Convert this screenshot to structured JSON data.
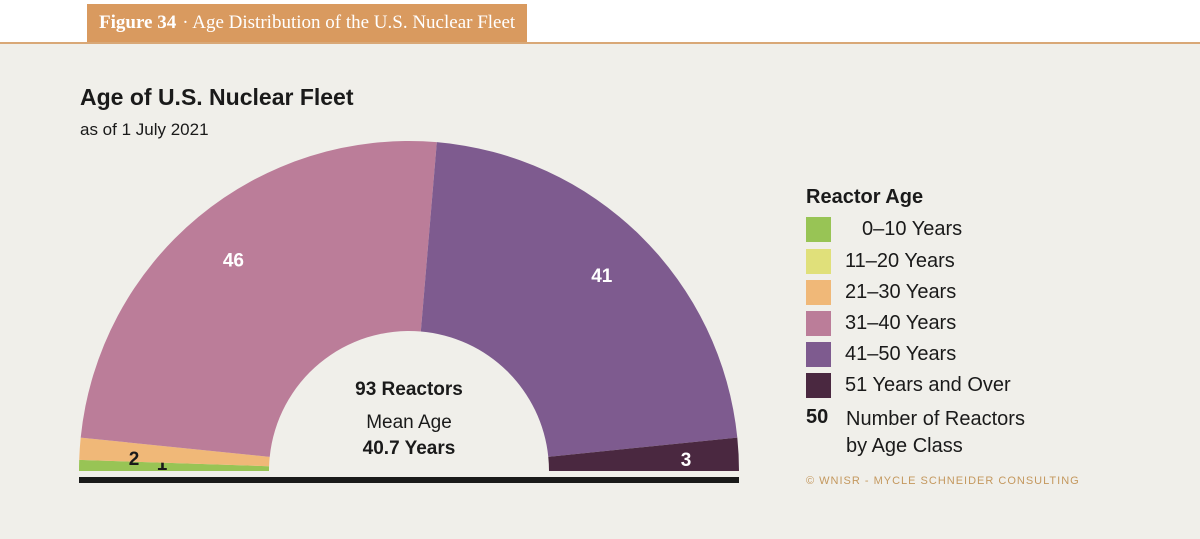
{
  "figure": {
    "number": "Figure 34",
    "title": "· Age Distribution of the U.S. Nuclear Fleet"
  },
  "chart_data": {
    "type": "pie",
    "style": "half-donut",
    "title": "Age of U.S. Nuclear Fleet",
    "subtitle": "as of 1 July 2021",
    "categories": [
      "0–10 Years",
      "11–20 Years",
      "21–30 Years",
      "31–40 Years",
      "41–50 Years",
      "51 Years and Over"
    ],
    "values": [
      1,
      0,
      2,
      46,
      41,
      3
    ],
    "colors": [
      "#98c455",
      "#e0e07a",
      "#f0b878",
      "#bb7d99",
      "#7e5b8f",
      "#4a2840"
    ],
    "center": {
      "line1": "93 Reactors",
      "line2": "Mean Age",
      "line3": "40.7 Years"
    },
    "legend": {
      "title": "Reactor Age",
      "number_example": "50",
      "number_label_line1": "Number of Reactors",
      "number_label_line2": "by Age Class"
    }
  },
  "copyright": "© WNISR - MYCLE SCHNEIDER CONSULTING"
}
